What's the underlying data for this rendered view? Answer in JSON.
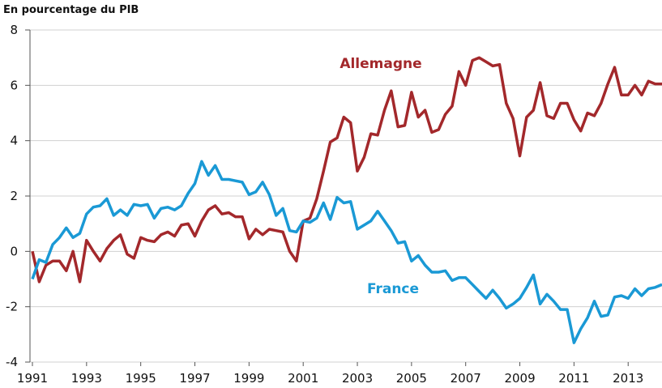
{
  "chart_data": {
    "type": "line",
    "ylabel": "En pourcentage du PIB",
    "x": [
      1991,
      1991.25,
      1991.5,
      1991.75,
      1992,
      1992.25,
      1992.5,
      1992.75,
      1993,
      1993.25,
      1993.5,
      1993.75,
      1994,
      1994.25,
      1994.5,
      1994.75,
      1995,
      1995.25,
      1995.5,
      1995.75,
      1996,
      1996.25,
      1996.5,
      1996.75,
      1997,
      1997.25,
      1997.5,
      1997.75,
      1998,
      1998.25,
      1998.5,
      1998.75,
      1999,
      1999.25,
      1999.5,
      1999.75,
      2000,
      2000.25,
      2000.5,
      2000.75,
      2001,
      2001.25,
      2001.5,
      2001.75,
      2002,
      2002.25,
      2002.5,
      2002.75,
      2003,
      2003.25,
      2003.5,
      2003.75,
      2004,
      2004.25,
      2004.5,
      2004.75,
      2005,
      2005.25,
      2005.5,
      2005.75,
      2006,
      2006.25,
      2006.5,
      2006.75,
      2007,
      2007.25,
      2007.5,
      2007.75,
      2008,
      2008.25,
      2008.5,
      2008.75,
      2009,
      2009.25,
      2009.5,
      2009.75,
      2010,
      2010.25,
      2010.5,
      2010.75,
      2011,
      2011.25,
      2011.5,
      2011.75,
      2012,
      2012.25,
      2012.5,
      2012.75,
      2013,
      2013.25,
      2013.5,
      2013.75,
      2014,
      2014.25
    ],
    "series": [
      {
        "name": "Allemagne",
        "color": "#a3282b",
        "values": [
          0,
          -1.1,
          -0.5,
          -0.35,
          -0.35,
          -0.7,
          0,
          -1.1,
          0.4,
          0,
          -0.35,
          0.1,
          0.4,
          0.6,
          -0.1,
          -0.25,
          0.5,
          0.4,
          0.35,
          0.6,
          0.7,
          0.55,
          0.95,
          1,
          0.55,
          1.1,
          1.5,
          1.65,
          1.35,
          1.4,
          1.25,
          1.25,
          0.45,
          0.8,
          0.6,
          0.8,
          0.75,
          0.7,
          0,
          -0.35,
          1.1,
          1.2,
          1.9,
          2.9,
          3.95,
          4.1,
          4.85,
          4.65,
          2.9,
          3.4,
          4.25,
          4.2,
          5.1,
          5.8,
          4.5,
          4.55,
          5.75,
          4.85,
          5.1,
          4.3,
          4.4,
          4.95,
          5.25,
          6.5,
          6,
          6.9,
          7,
          6.85,
          6.7,
          6.75,
          5.35,
          4.8,
          3.45,
          4.85,
          5.1,
          6.1,
          4.9,
          4.8,
          5.35,
          5.35,
          4.75,
          4.35,
          5,
          4.9,
          5.35,
          6.05,
          6.65,
          5.65,
          5.65,
          6,
          5.65,
          6.15,
          6.05,
          6.05
        ]
      },
      {
        "name": "France",
        "color": "#1a99d5",
        "values": [
          -1,
          -0.3,
          -0.4,
          0.25,
          0.5,
          0.85,
          0.5,
          0.65,
          1.35,
          1.6,
          1.65,
          1.9,
          1.3,
          1.5,
          1.3,
          1.7,
          1.65,
          1.7,
          1.2,
          1.55,
          1.6,
          1.5,
          1.65,
          2.1,
          2.45,
          3.25,
          2.75,
          3.1,
          2.6,
          2.6,
          2.55,
          2.5,
          2.05,
          2.15,
          2.5,
          2.05,
          1.3,
          1.55,
          0.75,
          0.7,
          1.1,
          1.05,
          1.2,
          1.75,
          1.15,
          1.95,
          1.75,
          1.8,
          0.8,
          0.95,
          1.1,
          1.45,
          1.1,
          0.75,
          0.3,
          0.35,
          -0.35,
          -0.15,
          -0.5,
          -0.75,
          -0.75,
          -0.7,
          -1.05,
          -0.95,
          -0.95,
          -1.2,
          -1.45,
          -1.7,
          -1.4,
          -1.7,
          -2.05,
          -1.9,
          -1.7,
          -1.3,
          -0.85,
          -1.9,
          -1.55,
          -1.8,
          -2.1,
          -2.1,
          -3.3,
          -2.8,
          -2.4,
          -1.8,
          -2.35,
          -2.3,
          -1.65,
          -1.6,
          -1.7,
          -1.35,
          -1.6,
          -1.35,
          -1.3,
          -1.2
        ]
      }
    ],
    "xlim": [
      1991,
      2014.25
    ],
    "xticks": [
      1991,
      1993,
      1995,
      1997,
      1999,
      2001,
      2003,
      2005,
      2007,
      2009,
      2011,
      2013
    ],
    "ylim": [
      -4,
      8
    ],
    "yticks": [
      -4,
      -2,
      0,
      2,
      4,
      6,
      8
    ],
    "grid": true
  }
}
